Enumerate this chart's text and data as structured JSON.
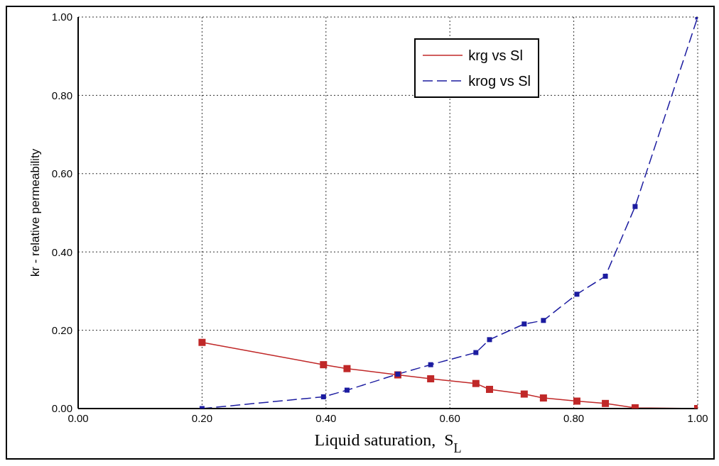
{
  "chart_data": {
    "type": "line",
    "xlabel": "Liquid saturation,  S$_{L}$",
    "ylabel": "kr - relative permeability",
    "xlim": [
      0,
      1
    ],
    "ylim": [
      0,
      1
    ],
    "xticks": [
      {
        "value": 0,
        "label": "0.00"
      },
      {
        "value": 0.2,
        "label": "0.20"
      },
      {
        "value": 0.4,
        "label": "0.40"
      },
      {
        "value": 0.6,
        "label": "0.60"
      },
      {
        "value": 0.8,
        "label": "0.80"
      },
      {
        "value": 1,
        "label": "1.00"
      }
    ],
    "yticks": [
      {
        "value": 0,
        "label": "0.00"
      },
      {
        "value": 0.2,
        "label": "0.20"
      },
      {
        "value": 0.4,
        "label": "0.40"
      },
      {
        "value": 0.6,
        "label": "0.60"
      },
      {
        "value": 0.8,
        "label": "0.80"
      },
      {
        "value": 1,
        "label": "1.00"
      }
    ],
    "x": [
      0.2,
      0.396,
      0.434,
      0.516,
      0.569,
      0.642,
      0.664,
      0.72,
      0.751,
      0.805,
      0.851,
      0.899,
      1.0
    ],
    "series": [
      {
        "name": "krg vs Sl",
        "color": "#c02828",
        "line_style": "solid",
        "values": [
          0.169,
          0.112,
          0.102,
          0.086,
          0.076,
          0.064,
          0.049,
          0.037,
          0.027,
          0.019,
          0.013,
          0.002,
          0
        ]
      },
      {
        "name": "krog vs Sl",
        "color": "#1c1ca0",
        "line_style": "dashed",
        "values": [
          0,
          0.03,
          0.047,
          0.088,
          0.112,
          0.143,
          0.176,
          0.216,
          0.225,
          0.292,
          0.338,
          0.516,
          1.0
        ]
      }
    ],
    "grid": true,
    "legend": "top right",
    "marker": "square"
  }
}
